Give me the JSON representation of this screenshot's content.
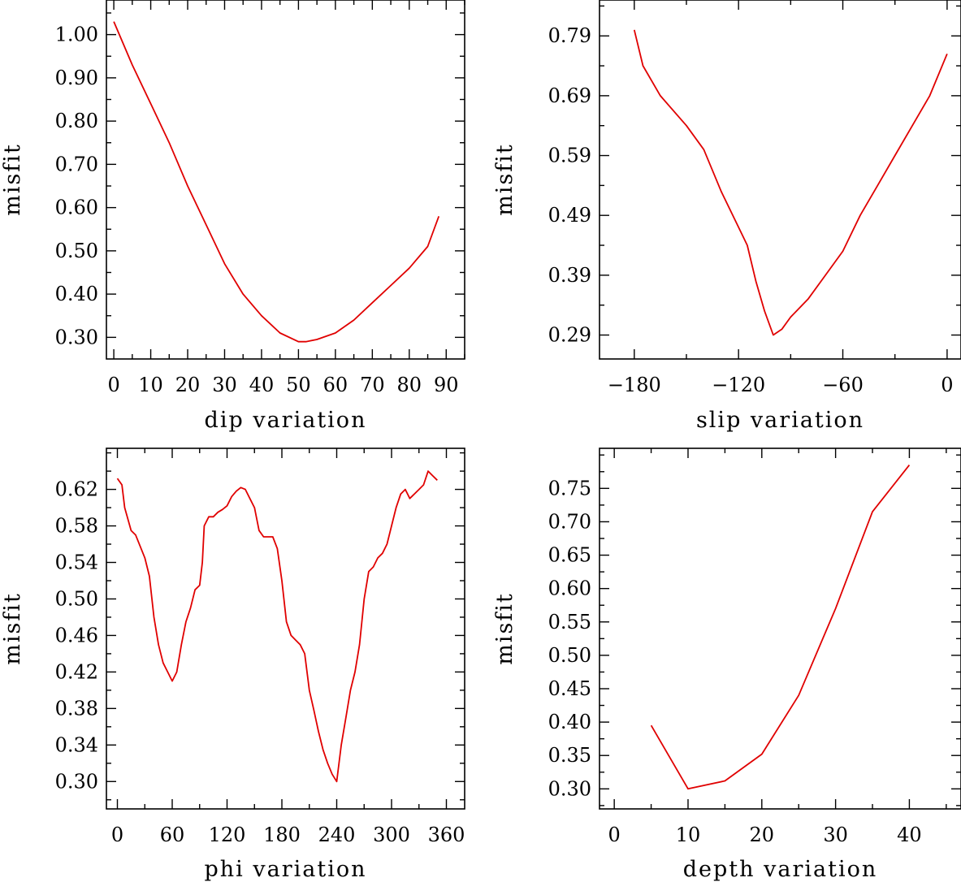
{
  "chart_data": [
    {
      "type": "line",
      "panel": "top-left",
      "xlabel": "dip    variation",
      "ylabel": "misfit",
      "xlim": [
        -2,
        95
      ],
      "ylim": [
        0.25,
        1.08
      ],
      "xticks": [
        0,
        10,
        20,
        30,
        40,
        50,
        60,
        70,
        80,
        90
      ],
      "xtick_labels": [
        "0",
        "10",
        "20",
        "30",
        "40",
        "50",
        "60",
        "70",
        "80",
        "90"
      ],
      "yticks": [
        0.3,
        0.4,
        0.5,
        0.6,
        0.7,
        0.8,
        0.9,
        1.0
      ],
      "ytick_labels": [
        "0.30",
        "0.40",
        "0.50",
        "0.60",
        "0.70",
        "0.80",
        "0.90",
        "1.00"
      ],
      "color": "#e00000",
      "x": [
        0,
        5,
        10,
        15,
        20,
        25,
        30,
        35,
        40,
        45,
        50,
        52,
        55,
        60,
        65,
        70,
        75,
        80,
        85,
        88
      ],
      "y": [
        1.03,
        0.93,
        0.84,
        0.75,
        0.65,
        0.56,
        0.47,
        0.4,
        0.35,
        0.31,
        0.29,
        0.29,
        0.295,
        0.31,
        0.34,
        0.38,
        0.42,
        0.46,
        0.51,
        0.58
      ]
    },
    {
      "type": "line",
      "panel": "top-right",
      "xlabel": "slip   variation",
      "ylabel": "misfit",
      "xlim": [
        -200,
        8
      ],
      "ylim": [
        0.25,
        0.85
      ],
      "xticks": [
        -180,
        -120,
        -60,
        0
      ],
      "xtick_labels": [
        "−180",
        "−120",
        "−60",
        "0"
      ],
      "yticks": [
        0.29,
        0.39,
        0.49,
        0.59,
        0.69,
        0.79
      ],
      "ytick_labels": [
        "0.29",
        "0.39",
        "0.49",
        "0.59",
        "0.69",
        "0.79"
      ],
      "color": "#e00000",
      "x": [
        -180,
        -175,
        -165,
        -150,
        -140,
        -130,
        -120,
        -115,
        -110,
        -105,
        -100,
        -95,
        -90,
        -80,
        -70,
        -60,
        -50,
        -40,
        -30,
        -20,
        -10,
        0
      ],
      "y": [
        0.8,
        0.74,
        0.69,
        0.64,
        0.6,
        0.53,
        0.47,
        0.44,
        0.38,
        0.33,
        0.29,
        0.3,
        0.32,
        0.35,
        0.39,
        0.43,
        0.49,
        0.54,
        0.59,
        0.64,
        0.69,
        0.76
      ]
    },
    {
      "type": "line",
      "panel": "bottom-left",
      "xlabel": "phi    variation",
      "ylabel": "misfit",
      "xlim": [
        -12,
        380
      ],
      "ylim": [
        0.27,
        0.665
      ],
      "xticks": [
        0,
        60,
        120,
        180,
        240,
        300,
        360
      ],
      "xtick_labels": [
        "0",
        "60",
        "120",
        "180",
        "240",
        "300",
        "360"
      ],
      "yticks": [
        0.3,
        0.34,
        0.38,
        0.42,
        0.46,
        0.5,
        0.54,
        0.58,
        0.62
      ],
      "ytick_labels": [
        "0.30",
        "0.34",
        "0.38",
        "0.42",
        "0.46",
        "0.50",
        "0.54",
        "0.58",
        "0.62"
      ],
      "color": "#e00000",
      "x": [
        0,
        5,
        8,
        15,
        20,
        30,
        35,
        40,
        45,
        50,
        55,
        60,
        65,
        70,
        75,
        80,
        85,
        90,
        93,
        95,
        100,
        105,
        110,
        115,
        120,
        125,
        130,
        135,
        140,
        145,
        150,
        155,
        160,
        170,
        175,
        180,
        185,
        190,
        195,
        200,
        205,
        210,
        215,
        220,
        225,
        230,
        235,
        240,
        245,
        250,
        255,
        260,
        265,
        270,
        275,
        280,
        285,
        290,
        295,
        300,
        305,
        310,
        315,
        320,
        325,
        330,
        335,
        340,
        345,
        350
      ],
      "y": [
        0.632,
        0.625,
        0.6,
        0.575,
        0.57,
        0.545,
        0.525,
        0.48,
        0.45,
        0.43,
        0.42,
        0.41,
        0.42,
        0.45,
        0.475,
        0.49,
        0.51,
        0.515,
        0.54,
        0.58,
        0.59,
        0.59,
        0.595,
        0.598,
        0.602,
        0.612,
        0.618,
        0.622,
        0.62,
        0.61,
        0.6,
        0.575,
        0.568,
        0.568,
        0.555,
        0.52,
        0.475,
        0.46,
        0.455,
        0.45,
        0.44,
        0.4,
        0.378,
        0.355,
        0.335,
        0.32,
        0.308,
        0.3,
        0.34,
        0.37,
        0.4,
        0.42,
        0.45,
        0.5,
        0.53,
        0.535,
        0.545,
        0.55,
        0.56,
        0.58,
        0.6,
        0.615,
        0.62,
        0.61,
        0.615,
        0.62,
        0.625,
        0.64,
        0.635,
        0.63
      ]
    },
    {
      "type": "line",
      "panel": "bottom-right",
      "xlabel": "depth   variation",
      "ylabel": "misfit",
      "xlim": [
        -2,
        47
      ],
      "ylim": [
        0.27,
        0.81
      ],
      "xticks": [
        0,
        10,
        20,
        30,
        40
      ],
      "xtick_labels": [
        "0",
        "10",
        "20",
        "30",
        "40"
      ],
      "yticks": [
        0.3,
        0.35,
        0.4,
        0.45,
        0.5,
        0.55,
        0.6,
        0.65,
        0.7,
        0.75
      ],
      "ytick_labels": [
        "0.30",
        "0.35",
        "0.40",
        "0.45",
        "0.50",
        "0.55",
        "0.60",
        "0.65",
        "0.70",
        "0.75"
      ],
      "color": "#e00000",
      "x": [
        5,
        10,
        15,
        20,
        25,
        30,
        35,
        40
      ],
      "y": [
        0.395,
        0.3,
        0.312,
        0.352,
        0.44,
        0.57,
        0.715,
        0.785
      ]
    }
  ]
}
